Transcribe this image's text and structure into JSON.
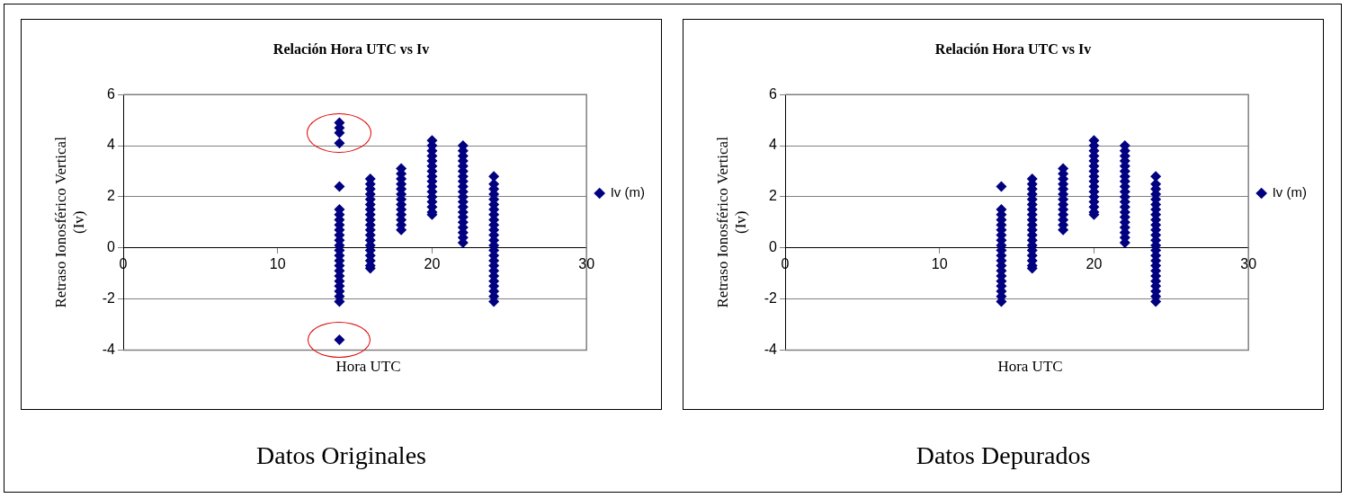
{
  "chart_data": [
    {
      "type": "scatter",
      "title": "Relación Hora UTC vs Iv",
      "xlabel": "Hora UTC",
      "ylabel": "Retraso Ionosférico Vertical (Iv)",
      "annotations": [
        "Datos Originales"
      ],
      "series": [
        {
          "name": "Iv (m)",
          "color": "#000080",
          "x": [
            14,
            14,
            14,
            14,
            14,
            14,
            14,
            14,
            14,
            14,
            14,
            14,
            14,
            14,
            14,
            14,
            14,
            14,
            14,
            14,
            14,
            14,
            14,
            14,
            14,
            16,
            16,
            16,
            16,
            16,
            16,
            16,
            16,
            16,
            16,
            16,
            16,
            16,
            16,
            16,
            16,
            16,
            16,
            16,
            18,
            18,
            18,
            18,
            18,
            18,
            18,
            18,
            18,
            18,
            18,
            18,
            18,
            20,
            20,
            20,
            20,
            20,
            20,
            20,
            20,
            20,
            20,
            20,
            20,
            20,
            20,
            20,
            20,
            22,
            22,
            22,
            22,
            22,
            22,
            22,
            22,
            22,
            22,
            22,
            22,
            22,
            22,
            22,
            22,
            22,
            22,
            22,
            22,
            24,
            24,
            24,
            24,
            24,
            24,
            24,
            24,
            24,
            24,
            24,
            24,
            24,
            24,
            24,
            24,
            24,
            24,
            24,
            24,
            24,
            24,
            24,
            24,
            24
          ],
          "values": [
            4.9,
            4.7,
            4.5,
            4.1,
            2.4,
            1.5,
            1.3,
            1.1,
            0.9,
            0.7,
            0.5,
            0.3,
            0.1,
            -0.1,
            -0.3,
            -0.5,
            -0.7,
            -0.9,
            -1.1,
            -1.3,
            -1.5,
            -1.7,
            -1.9,
            -2.1,
            -3.6,
            2.7,
            2.5,
            2.3,
            2.1,
            1.9,
            1.7,
            1.5,
            1.3,
            1.1,
            0.9,
            0.7,
            0.5,
            0.3,
            0.1,
            -0.1,
            -0.3,
            -0.5,
            -0.7,
            -0.8,
            3.1,
            2.9,
            2.7,
            2.5,
            2.3,
            2.1,
            1.9,
            1.7,
            1.5,
            1.3,
            1.1,
            0.9,
            0.7,
            4.2,
            4.0,
            3.8,
            3.6,
            3.4,
            3.2,
            3.0,
            2.8,
            2.6,
            2.4,
            2.2,
            2.0,
            1.8,
            1.6,
            1.4,
            1.3,
            4.0,
            3.8,
            3.6,
            3.4,
            3.2,
            3.0,
            2.8,
            2.6,
            2.4,
            2.2,
            2.0,
            1.8,
            1.6,
            1.4,
            1.2,
            1.0,
            0.8,
            0.6,
            0.4,
            0.2,
            2.8,
            2.5,
            2.3,
            2.1,
            1.9,
            1.7,
            1.5,
            1.3,
            1.1,
            0.9,
            0.7,
            0.5,
            0.3,
            0.1,
            -0.1,
            -0.3,
            -0.5,
            -0.7,
            -0.9,
            -1.1,
            -1.3,
            -1.5,
            -1.7,
            -1.9,
            -2.1
          ]
        }
      ],
      "xlim": [
        0,
        30
      ],
      "xticks": [
        0,
        10,
        20,
        30
      ],
      "ylim": [
        -4,
        6
      ],
      "yticks": [
        -4,
        -2,
        0,
        2,
        4,
        6
      ],
      "grid": "y",
      "legend": "right",
      "marker": "diamond"
    },
    {
      "type": "scatter",
      "title": "Relación Hora UTC vs Iv",
      "xlabel": "Hora UTC",
      "ylabel": "Retraso Ionosférico Vertical (Iv)",
      "annotations": [
        "Datos Depurados"
      ],
      "series": [
        {
          "name": "Iv (m)",
          "color": "#000080",
          "x": [
            14,
            14,
            14,
            14,
            14,
            14,
            14,
            14,
            14,
            14,
            14,
            14,
            14,
            14,
            14,
            14,
            14,
            14,
            14,
            14,
            16,
            16,
            16,
            16,
            16,
            16,
            16,
            16,
            16,
            16,
            16,
            16,
            16,
            16,
            16,
            16,
            16,
            16,
            16,
            18,
            18,
            18,
            18,
            18,
            18,
            18,
            18,
            18,
            18,
            18,
            18,
            18,
            20,
            20,
            20,
            20,
            20,
            20,
            20,
            20,
            20,
            20,
            20,
            20,
            20,
            20,
            20,
            20,
            22,
            22,
            22,
            22,
            22,
            22,
            22,
            22,
            22,
            22,
            22,
            22,
            22,
            22,
            22,
            22,
            22,
            22,
            22,
            22,
            24,
            24,
            24,
            24,
            24,
            24,
            24,
            24,
            24,
            24,
            24,
            24,
            24,
            24,
            24,
            24,
            24,
            24,
            24,
            24,
            24,
            24,
            24,
            24,
            24
          ],
          "values": [
            2.4,
            1.5,
            1.3,
            1.1,
            0.9,
            0.7,
            0.5,
            0.3,
            0.1,
            -0.1,
            -0.3,
            -0.5,
            -0.7,
            -0.9,
            -1.1,
            -1.3,
            -1.5,
            -1.7,
            -1.9,
            -2.1,
            2.7,
            2.5,
            2.3,
            2.1,
            1.9,
            1.7,
            1.5,
            1.3,
            1.1,
            0.9,
            0.7,
            0.5,
            0.3,
            0.1,
            -0.1,
            -0.3,
            -0.5,
            -0.7,
            -0.8,
            3.1,
            2.9,
            2.7,
            2.5,
            2.3,
            2.1,
            1.9,
            1.7,
            1.5,
            1.3,
            1.1,
            0.9,
            0.7,
            4.2,
            4.0,
            3.8,
            3.6,
            3.4,
            3.2,
            3.0,
            2.8,
            2.6,
            2.4,
            2.2,
            2.0,
            1.8,
            1.6,
            1.4,
            1.3,
            4.0,
            3.8,
            3.6,
            3.4,
            3.2,
            3.0,
            2.8,
            2.6,
            2.4,
            2.2,
            2.0,
            1.8,
            1.6,
            1.4,
            1.2,
            1.0,
            0.8,
            0.6,
            0.4,
            0.2,
            2.8,
            2.5,
            2.3,
            2.1,
            1.9,
            1.7,
            1.5,
            1.3,
            1.1,
            0.9,
            0.7,
            0.5,
            0.3,
            0.1,
            -0.1,
            -0.3,
            -0.5,
            -0.7,
            -0.9,
            -1.1,
            -1.3,
            -1.5,
            -1.7,
            -1.9,
            -2.1
          ]
        }
      ],
      "xlim": [
        0,
        30
      ],
      "xticks": [
        0,
        10,
        20,
        30
      ],
      "ylim": [
        -4,
        6
      ],
      "yticks": [
        -4,
        -2,
        0,
        2,
        4,
        6
      ],
      "grid": "y",
      "legend": "right",
      "marker": "diamond"
    }
  ]
}
